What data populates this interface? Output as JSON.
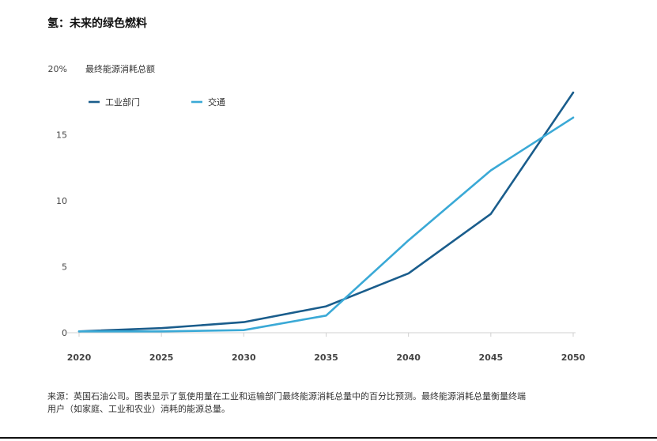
{
  "page": {
    "title": "氢：未来的绿色燃料",
    "source_line1": "来源：英国石油公司。图表显示了氢使用量在工业和运输部门最终能源消耗总量中的百分比预测。最终能源消耗总量衡量终端",
    "source_line2": "用户（如家庭、工业和农业）消耗的能源总量。"
  },
  "colors": {
    "industry": "#1a5d8c",
    "transport": "#3aa9d6",
    "axis": "#d0d0d0",
    "tick_text": "#444444"
  },
  "chart_data": {
    "type": "line",
    "title": "",
    "ylabel": "最终能源消耗总额",
    "ylabel_unit": "20%",
    "xlabel": "",
    "x": [
      2020,
      2025,
      2030,
      2035,
      2040,
      2045,
      2050
    ],
    "x_tick_labels": [
      "2020",
      "2025",
      "2030",
      "2035",
      "2040",
      "2045",
      "2050"
    ],
    "y_ticks": [
      0,
      5,
      10,
      15,
      20
    ],
    "y_tick_labels": [
      "0",
      "5",
      "10",
      "15",
      "20%"
    ],
    "ylim": [
      0,
      20
    ],
    "grid": false,
    "legend_position": "top-left",
    "series": [
      {
        "name": "工业部门",
        "values": [
          0.1,
          0.35,
          0.8,
          2.0,
          4.5,
          9.0,
          18.2
        ]
      },
      {
        "name": "交通",
        "values": [
          0.1,
          0.1,
          0.2,
          1.3,
          7.0,
          12.3,
          16.3
        ]
      }
    ]
  }
}
